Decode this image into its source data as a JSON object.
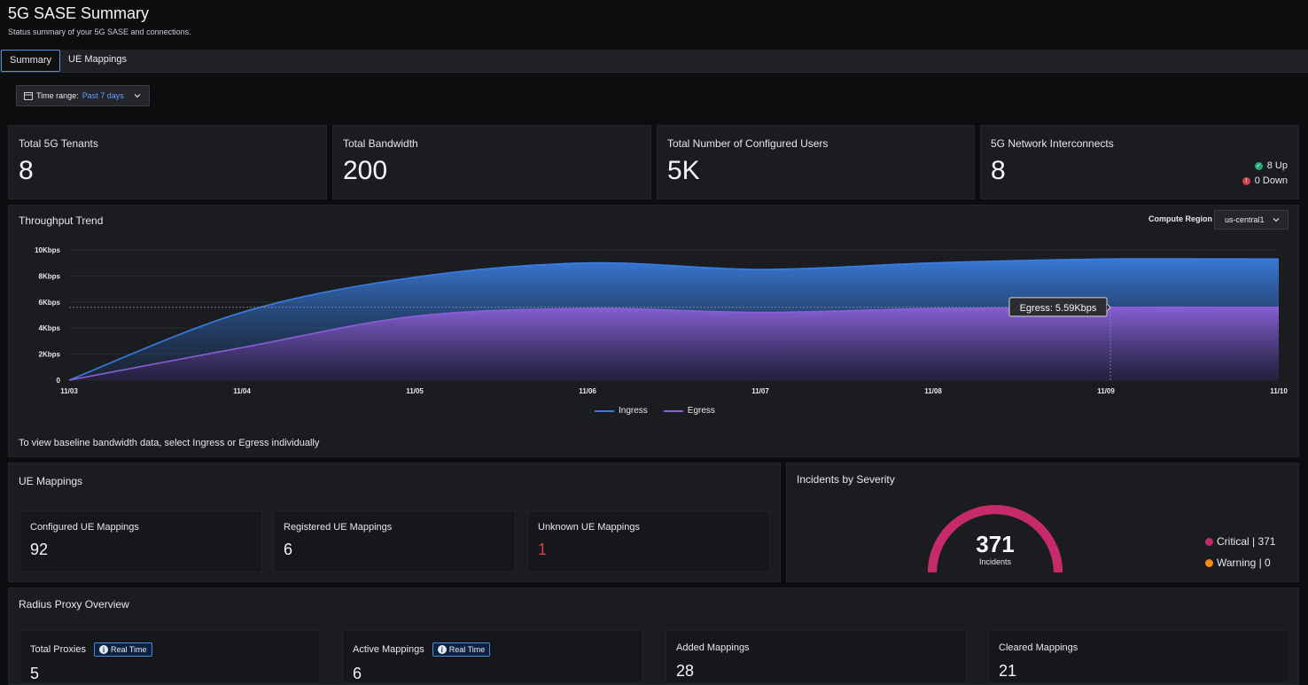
{
  "header": {
    "title": "5G SASE Summary",
    "subtitle": "Status summary of your 5G SASE and connections."
  },
  "tabs": [
    {
      "label": "Summary"
    },
    {
      "label": "UE Mappings"
    }
  ],
  "time_range": {
    "label": "Time range:",
    "value": "Past 7 days"
  },
  "stats": [
    {
      "title": "Total 5G Tenants",
      "value": "8"
    },
    {
      "title": "Total Bandwidth",
      "value": "200"
    },
    {
      "title": "Total Number of Configured Users",
      "value": "5K"
    },
    {
      "title": "5G Network Interconnects",
      "value": "8",
      "up": "8 Up",
      "down": "0 Down"
    }
  ],
  "throughput": {
    "title": "Throughput Trend",
    "region_label": "Compute Region",
    "region_value": "us-central1",
    "tooltip": "Egress: 5.59Kbps",
    "note": "To view baseline bandwidth data, select Ingress or Egress individually"
  },
  "chart_data": {
    "type": "area",
    "title": "Throughput Trend",
    "x": [
      "11/03",
      "11/04",
      "11/05",
      "11/06",
      "11/07",
      "11/08",
      "11/09",
      "11/10"
    ],
    "y_ticks": [
      "0",
      "2Kbps",
      "4Kbps",
      "6Kbps",
      "8Kbps",
      "10Kbps"
    ],
    "ylim": [
      0,
      10
    ],
    "yunit": "Kbps",
    "series": [
      {
        "name": "Ingress",
        "values": [
          0,
          5.2,
          7.9,
          9.0,
          8.5,
          9.0,
          9.3,
          9.3
        ],
        "color": "#3a7de0"
      },
      {
        "name": "Egress",
        "values": [
          0,
          2.5,
          4.9,
          5.5,
          5.2,
          5.5,
          5.59,
          5.59
        ],
        "color": "#8a5fd6"
      }
    ]
  },
  "ue_mappings": {
    "title": "UE Mappings",
    "items": [
      {
        "label": "Configured UE Mappings",
        "value": "92"
      },
      {
        "label": "Registered UE Mappings",
        "value": "6"
      },
      {
        "label": "Unknown UE Mappings",
        "value": "1"
      }
    ]
  },
  "incidents": {
    "title": "Incidents by Severity",
    "total": "371",
    "total_label": "Incidents",
    "critical": "Critical | 371",
    "warning": "Warning | 0",
    "critical_count": 371,
    "warning_count": 0,
    "critical_color": "#c72a6b",
    "warning_color": "#f28a1a"
  },
  "radius": {
    "title": "Radius Proxy Overview",
    "badge": "Real Time",
    "items": [
      {
        "label": "Total Proxies",
        "value": "5"
      },
      {
        "label": "Active Mappings",
        "value": "6"
      },
      {
        "label": "Added Mappings",
        "value": "28"
      },
      {
        "label": "Cleared Mappings",
        "value": "21"
      }
    ]
  }
}
